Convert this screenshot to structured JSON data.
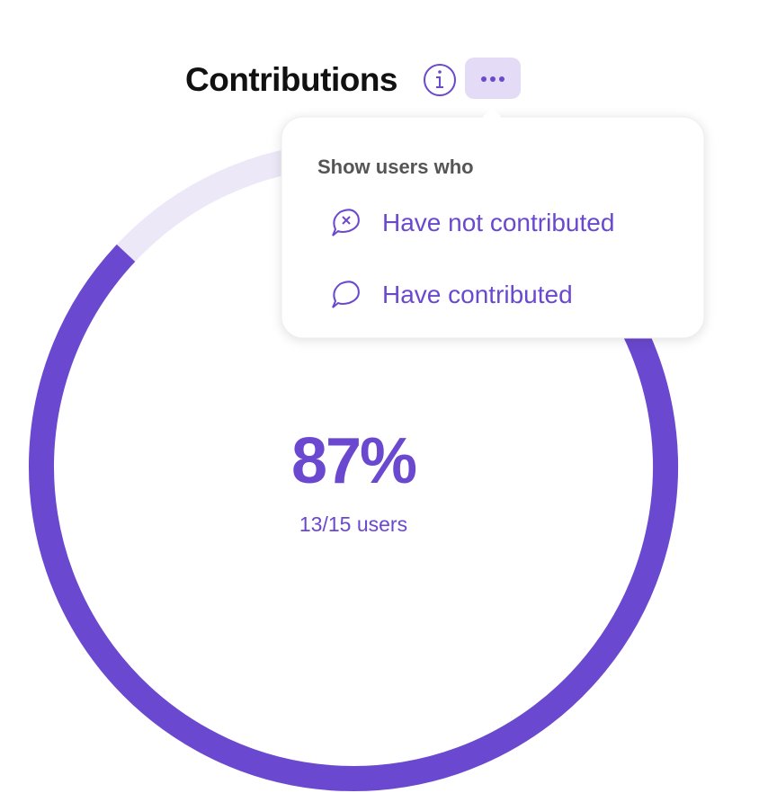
{
  "header": {
    "title": "Contributions"
  },
  "gauge": {
    "value": 87,
    "value_label": "87%",
    "caption": "13/15 users",
    "color": "#6a48cf",
    "track_color": "#ece8f7"
  },
  "menu": {
    "heading": "Show users who",
    "items": [
      "Have not contributed",
      "Have contributed"
    ]
  }
}
